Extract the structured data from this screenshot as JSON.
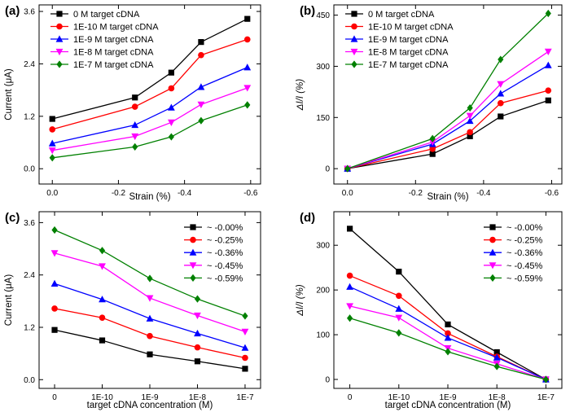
{
  "figure": {
    "description_free": true
  },
  "colors": {
    "black": "#000000",
    "red": "#ff0000",
    "blue": "#0000ff",
    "magenta": "#ff00ff",
    "green": "#008000"
  },
  "chart_data": [
    {
      "panel_label": "(a)",
      "type": "line",
      "xlabel": "Strain (%)",
      "ylabel": "Current (μA)",
      "x": [
        0.0,
        -0.25,
        -0.36,
        -0.45,
        -0.59
      ],
      "xlim": [
        0.04,
        -0.63
      ],
      "xticks": [
        0.0,
        -0.2,
        -0.4,
        -0.6
      ],
      "xtick_labels": [
        "0.0",
        "-0.2",
        "-0.4",
        "-0.6"
      ],
      "ylim": [
        -0.35,
        3.75
      ],
      "yticks": [
        0.0,
        1.2,
        2.4,
        3.6
      ],
      "ytick_labels": [
        "0.0",
        "1.2",
        "2.4",
        "3.6"
      ],
      "legend_position": "top-left",
      "series": [
        {
          "name": "0 M target cDNA",
          "color": "#000000",
          "marker": "square",
          "values": [
            1.14,
            1.63,
            2.2,
            2.9,
            3.43
          ]
        },
        {
          "name": "1E-10 M target cDNA",
          "color": "#ff0000",
          "marker": "circle",
          "values": [
            0.9,
            1.42,
            1.84,
            2.6,
            2.96
          ]
        },
        {
          "name": "1E-9 M target cDNA",
          "color": "#0000ff",
          "marker": "triangle-up",
          "values": [
            0.58,
            1.0,
            1.4,
            1.87,
            2.32
          ]
        },
        {
          "name": "1E-8 M target cDNA",
          "color": "#ff00ff",
          "marker": "triangle-down",
          "values": [
            0.42,
            0.74,
            1.06,
            1.47,
            1.85
          ]
        },
        {
          "name": "1E-7 M target cDNA",
          "color": "#008000",
          "marker": "diamond",
          "values": [
            0.25,
            0.5,
            0.73,
            1.1,
            1.46
          ]
        }
      ]
    },
    {
      "panel_label": "(b)",
      "type": "line",
      "xlabel": "Strain (%)",
      "ylabel": "ΔI/I (%)",
      "x": [
        0.0,
        -0.25,
        -0.36,
        -0.45,
        -0.59
      ],
      "xlim": [
        0.04,
        -0.63
      ],
      "xticks": [
        0.0,
        -0.2,
        -0.4,
        -0.6
      ],
      "xtick_labels": [
        "0.0",
        "-0.2",
        "-0.4",
        "-0.6"
      ],
      "ylim": [
        -45,
        480
      ],
      "yticks": [
        0,
        150,
        300,
        450
      ],
      "ytick_labels": [
        "0",
        "150",
        "300",
        "450"
      ],
      "legend_position": "top-left",
      "series": [
        {
          "name": "0 M target cDNA",
          "color": "#000000",
          "marker": "square",
          "values": [
            0,
            43,
            95,
            153,
            200
          ]
        },
        {
          "name": "1E-10 M target cDNA",
          "color": "#ff0000",
          "marker": "circle",
          "values": [
            0,
            58,
            107,
            192,
            229
          ]
        },
        {
          "name": "1E-9 M target cDNA",
          "color": "#0000ff",
          "marker": "triangle-up",
          "values": [
            0,
            72,
            140,
            220,
            303
          ]
        },
        {
          "name": "1E-8 M target cDNA",
          "color": "#ff00ff",
          "marker": "triangle-down",
          "values": [
            0,
            78,
            155,
            248,
            343
          ]
        },
        {
          "name": "1E-7 M target cDNA",
          "color": "#008000",
          "marker": "diamond",
          "values": [
            0,
            88,
            178,
            320,
            455
          ]
        }
      ]
    },
    {
      "panel_label": "(c)",
      "type": "line",
      "xlabel": "target cDNA concentration (M)",
      "ylabel": "Current (μA)",
      "categories": [
        "0",
        "1E-10",
        "1E-9",
        "1E-8",
        "1E-7"
      ],
      "ylim": [
        -0.2,
        3.85
      ],
      "yticks": [
        0.0,
        1.2,
        2.4,
        3.6
      ],
      "ytick_labels": [
        "0.0",
        "1.2",
        "2.4",
        "3.6"
      ],
      "legend_position": "top-right",
      "series": [
        {
          "name": "~ -0.00%",
          "color": "#000000",
          "marker": "square",
          "values": [
            1.14,
            0.9,
            0.58,
            0.42,
            0.25
          ]
        },
        {
          "name": "~ -0.25%",
          "color": "#ff0000",
          "marker": "circle",
          "values": [
            1.63,
            1.42,
            1.0,
            0.74,
            0.5
          ]
        },
        {
          "name": "~ -0.36%",
          "color": "#0000ff",
          "marker": "triangle-up",
          "values": [
            2.2,
            1.84,
            1.4,
            1.06,
            0.73
          ]
        },
        {
          "name": "~ -0.45%",
          "color": "#ff00ff",
          "marker": "triangle-down",
          "values": [
            2.9,
            2.6,
            1.87,
            1.47,
            1.1
          ]
        },
        {
          "name": "~ -0.59%",
          "color": "#008000",
          "marker": "diamond",
          "values": [
            3.43,
            2.96,
            2.32,
            1.85,
            1.46
          ]
        }
      ]
    },
    {
      "panel_label": "(d)",
      "type": "line",
      "xlabel": "target cDNA concentration (M)",
      "ylabel": "ΔI/I (%)",
      "categories": [
        "0",
        "1E-10",
        "1E-9",
        "1E-8",
        "1E-7"
      ],
      "ylim": [
        -20,
        375
      ],
      "yticks": [
        0,
        100,
        200,
        300
      ],
      "ytick_labels": [
        "0",
        "100",
        "200",
        "300"
      ],
      "legend_position": "top-right",
      "series": [
        {
          "name": "~ -0.00%",
          "color": "#000000",
          "marker": "square",
          "values": [
            337,
            241,
            123,
            61,
            0
          ]
        },
        {
          "name": "~ -0.25%",
          "color": "#ff0000",
          "marker": "circle",
          "values": [
            232,
            187,
            103,
            51,
            0
          ]
        },
        {
          "name": "~ -0.36%",
          "color": "#0000ff",
          "marker": "triangle-up",
          "values": [
            207,
            158,
            93,
            49,
            0
          ]
        },
        {
          "name": "~ -0.45%",
          "color": "#ff00ff",
          "marker": "triangle-down",
          "values": [
            164,
            138,
            70,
            35,
            0
          ]
        },
        {
          "name": "~ -0.59%",
          "color": "#008000",
          "marker": "diamond",
          "values": [
            137,
            104,
            62,
            29,
            0
          ]
        }
      ]
    }
  ]
}
